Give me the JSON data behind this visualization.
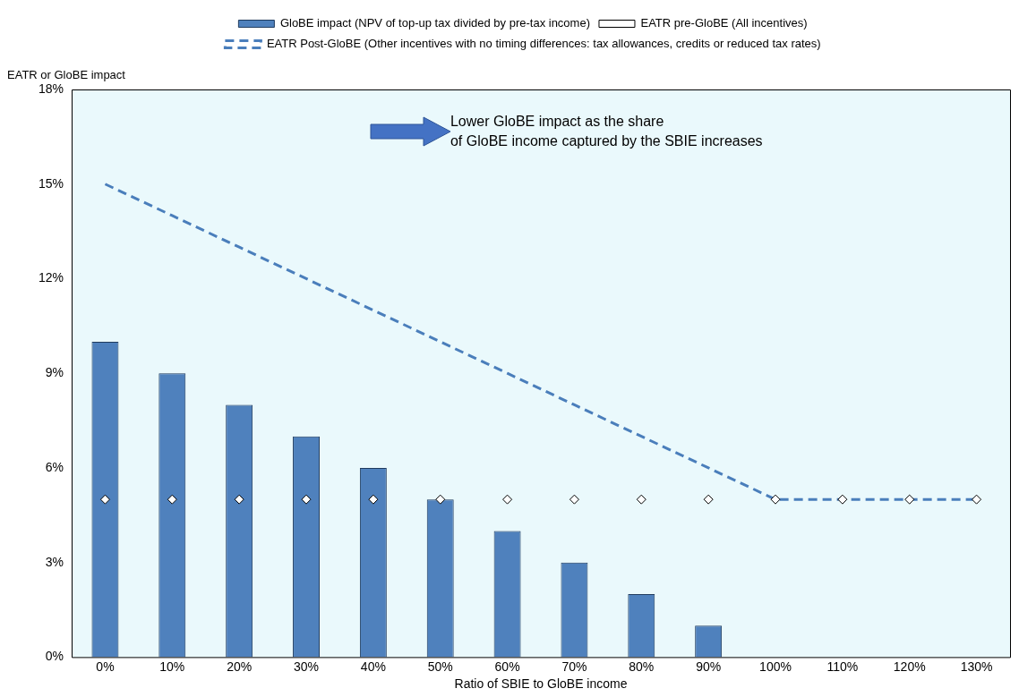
{
  "chart_data": {
    "type": "bar",
    "xlabel": "Ratio of SBIE to GloBE income",
    "ylabel": "EATR or GloBE impact",
    "categories": [
      "0%",
      "10%",
      "20%",
      "30%",
      "40%",
      "50%",
      "60%",
      "70%",
      "80%",
      "90%",
      "100%",
      "110%",
      "120%",
      "130%"
    ],
    "series": [
      {
        "name": "GloBE impact (NPV of top-up tax divided by pre-tax income)",
        "color": "#4f81bd",
        "values": [
          10,
          9,
          8,
          7,
          6,
          5,
          4,
          3,
          2,
          1,
          0,
          0,
          0,
          0
        ]
      },
      {
        "name": "EATR pre-GloBE (All incentives)",
        "type": "scatter",
        "marker": "diamond",
        "color": "#ffffff",
        "x": [
          "0%",
          "10%",
          "20%",
          "30%",
          "40%",
          "50%",
          "60%",
          "70%",
          "80%",
          "90%",
          "100%",
          "110%",
          "120%",
          "130%"
        ],
        "values": [
          5,
          5,
          5,
          5,
          5,
          5,
          5,
          5,
          5,
          5,
          5,
          5,
          5,
          5
        ]
      },
      {
        "name": "EATR Post-GloBE (Other incentives with no timing differences: tax allowances, credits or reduced tax rates)",
        "type": "line",
        "line_style": "dashed",
        "marker": "none",
        "color": "#4a7ebb",
        "values": [
          15,
          14,
          13,
          12,
          11,
          10,
          9,
          8,
          7,
          6,
          5,
          5,
          5,
          5
        ]
      }
    ],
    "ylim": [
      0,
      18
    ],
    "yticks": [
      {
        "value": 0,
        "label": "0%"
      },
      {
        "value": 3,
        "label": "3%"
      },
      {
        "value": 6,
        "label": "6%"
      },
      {
        "value": 9,
        "label": "9%"
      },
      {
        "value": 12,
        "label": "12%"
      },
      {
        "value": 15,
        "label": "15%"
      },
      {
        "value": 18,
        "label": "18%"
      }
    ],
    "annotations": [
      "Lower GloBE impact as the share\nof GloBE income captured by the SBIE increases"
    ],
    "grid": false,
    "legend": "top"
  }
}
